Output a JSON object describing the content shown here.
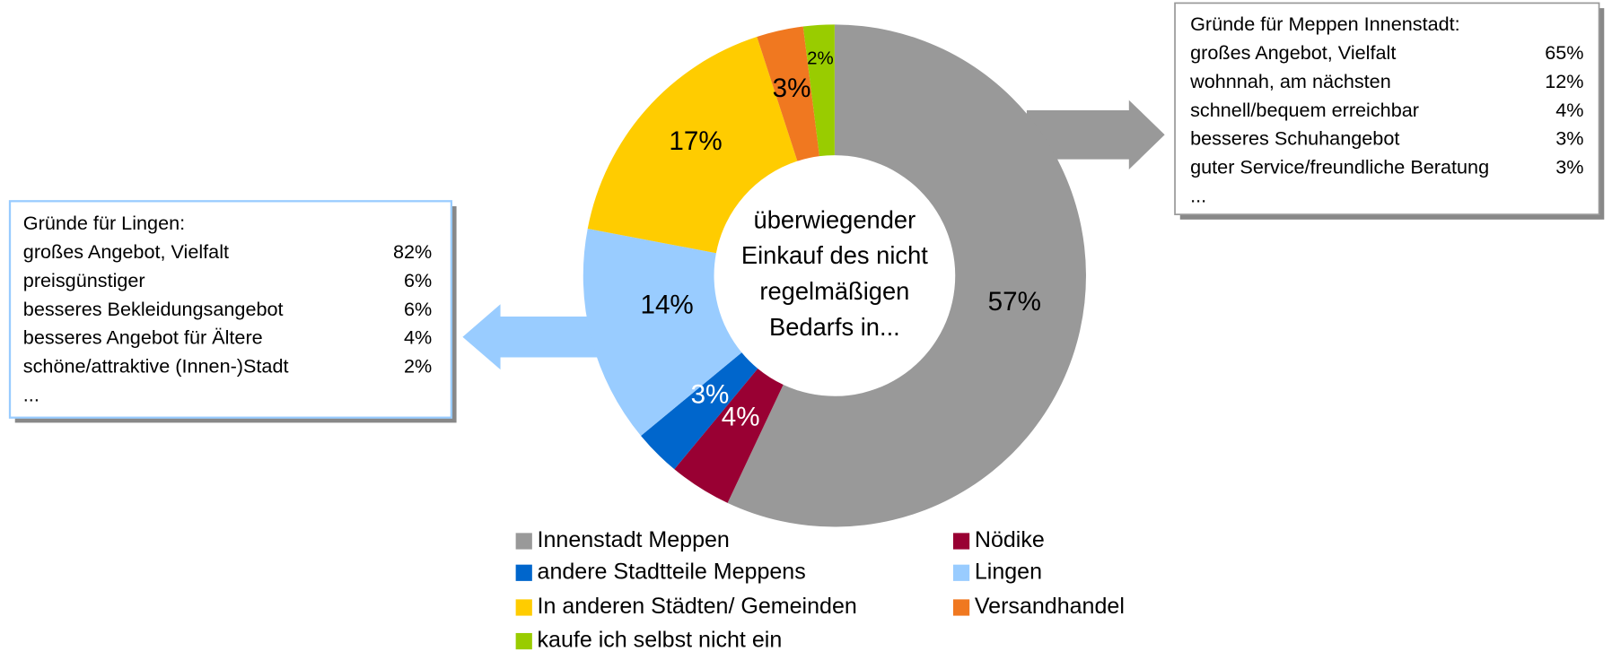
{
  "chart_data": {
    "type": "donut",
    "center_text": [
      "überwiegender",
      "Einkauf des nicht",
      "regelmäßigen",
      "Bedarfs in..."
    ],
    "categories": [
      "Innenstadt Meppen",
      "Nödike",
      "andere Stadtteile Meppens",
      "Lingen",
      "In anderen Städten/ Gemeinden",
      "Versandhandel",
      "kaufe ich selbst nicht ein"
    ],
    "values": [
      57,
      4,
      3,
      14,
      17,
      3,
      2
    ],
    "value_labels": [
      "57%",
      "4%",
      "3%",
      "14%",
      "17%",
      "3%",
      "2%"
    ],
    "colors": [
      "#999999",
      "#990033",
      "#0066cc",
      "#99ccff",
      "#ffcc00",
      "#f07820",
      "#99cc00"
    ]
  },
  "boxes": [
    {
      "title": "Gründe für Lingen:",
      "items": [
        [
          "großes Angebot, Vielfalt",
          "82%"
        ],
        [
          "preisgünstiger",
          "6%"
        ],
        [
          "besseres Bekleidungsangebot",
          "6%"
        ],
        [
          "besseres Angebot für Ältere",
          "4%"
        ],
        [
          "schöne/attraktive (Innen-)Stadt",
          "2%"
        ]
      ],
      "more": "..."
    },
    {
      "title": "Gründe für Meppen Innenstadt:",
      "items": [
        [
          "großes Angebot, Vielfalt",
          "65%"
        ],
        [
          "wohnnah, am nächsten",
          "12%"
        ],
        [
          "schnell/bequem erreichbar",
          "4%"
        ],
        [
          "besseres Schuhangebot",
          "3%"
        ],
        [
          "guter Service/freundliche Beratung",
          "3%"
        ]
      ],
      "more": "..."
    }
  ]
}
